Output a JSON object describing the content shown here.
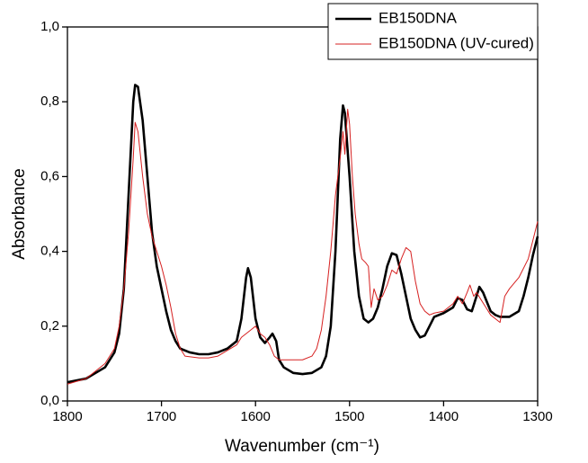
{
  "chart_data": {
    "type": "line",
    "xlabel": "Wavenumber (cm⁻¹)",
    "ylabel": "Absorbance",
    "xlim": [
      1800,
      1300
    ],
    "xticks": [
      1800,
      1700,
      1600,
      1500,
      1400,
      1300
    ],
    "ylim": [
      0,
      1.0
    ],
    "yticks": [
      {
        "value": 0,
        "label": "0,0"
      },
      {
        "value": 0.2,
        "label": "0,2"
      },
      {
        "value": 0.4,
        "label": "0,4"
      },
      {
        "value": 0.6,
        "label": "0,6"
      },
      {
        "value": 0.8,
        "label": "0,8"
      },
      {
        "value": 1.0,
        "label": "1,0"
      }
    ],
    "legend": "upper right",
    "series": [
      {
        "name": "EB150DNA",
        "color": "#000000",
        "x": [
          1800,
          1780,
          1760,
          1750,
          1745,
          1740,
          1735,
          1730,
          1728,
          1725,
          1720,
          1715,
          1710,
          1705,
          1700,
          1695,
          1690,
          1685,
          1680,
          1670,
          1660,
          1650,
          1640,
          1630,
          1620,
          1615,
          1610,
          1608,
          1605,
          1600,
          1595,
          1590,
          1585,
          1582,
          1578,
          1575,
          1570,
          1560,
          1550,
          1540,
          1530,
          1525,
          1520,
          1515,
          1510,
          1507,
          1505,
          1500,
          1495,
          1490,
          1485,
          1480,
          1475,
          1470,
          1465,
          1460,
          1455,
          1450,
          1445,
          1440,
          1435,
          1430,
          1425,
          1420,
          1415,
          1410,
          1400,
          1390,
          1385,
          1380,
          1375,
          1370,
          1365,
          1362,
          1358,
          1350,
          1345,
          1340,
          1330,
          1320,
          1315,
          1310,
          1305,
          1300
        ],
        "values": [
          0.05,
          0.06,
          0.09,
          0.13,
          0.18,
          0.3,
          0.55,
          0.8,
          0.845,
          0.84,
          0.75,
          0.6,
          0.45,
          0.36,
          0.3,
          0.24,
          0.19,
          0.16,
          0.14,
          0.13,
          0.125,
          0.125,
          0.13,
          0.14,
          0.16,
          0.22,
          0.33,
          0.355,
          0.33,
          0.22,
          0.17,
          0.155,
          0.17,
          0.18,
          0.16,
          0.11,
          0.09,
          0.075,
          0.072,
          0.075,
          0.09,
          0.12,
          0.2,
          0.4,
          0.7,
          0.79,
          0.77,
          0.6,
          0.4,
          0.28,
          0.22,
          0.21,
          0.22,
          0.25,
          0.3,
          0.36,
          0.395,
          0.39,
          0.34,
          0.28,
          0.22,
          0.19,
          0.17,
          0.175,
          0.2,
          0.225,
          0.235,
          0.25,
          0.275,
          0.27,
          0.245,
          0.24,
          0.28,
          0.305,
          0.29,
          0.24,
          0.23,
          0.225,
          0.225,
          0.24,
          0.28,
          0.33,
          0.39,
          0.44
        ]
      },
      {
        "name": "EB150DNA (UV-cured)",
        "color": "#d62020",
        "x": [
          1800,
          1780,
          1760,
          1750,
          1745,
          1740,
          1735,
          1730,
          1728,
          1725,
          1720,
          1715,
          1710,
          1705,
          1700,
          1695,
          1690,
          1685,
          1680,
          1675,
          1660,
          1650,
          1640,
          1630,
          1620,
          1615,
          1610,
          1605,
          1600,
          1595,
          1590,
          1585,
          1580,
          1575,
          1560,
          1550,
          1540,
          1535,
          1530,
          1525,
          1520,
          1515,
          1510,
          1507,
          1505,
          1502,
          1500,
          1497,
          1494,
          1490,
          1487,
          1483,
          1480,
          1477,
          1474,
          1470,
          1465,
          1460,
          1455,
          1450,
          1445,
          1440,
          1435,
          1430,
          1425,
          1420,
          1415,
          1410,
          1400,
          1390,
          1385,
          1380,
          1375,
          1372,
          1368,
          1365,
          1360,
          1355,
          1350,
          1345,
          1340,
          1335,
          1330,
          1320,
          1310,
          1305,
          1300
        ],
        "values": [
          0.045,
          0.06,
          0.1,
          0.14,
          0.2,
          0.3,
          0.45,
          0.65,
          0.745,
          0.72,
          0.6,
          0.5,
          0.44,
          0.4,
          0.36,
          0.31,
          0.25,
          0.18,
          0.14,
          0.12,
          0.115,
          0.115,
          0.12,
          0.135,
          0.15,
          0.17,
          0.18,
          0.19,
          0.2,
          0.18,
          0.17,
          0.15,
          0.12,
          0.11,
          0.11,
          0.11,
          0.12,
          0.14,
          0.19,
          0.28,
          0.4,
          0.55,
          0.65,
          0.72,
          0.66,
          0.78,
          0.74,
          0.6,
          0.5,
          0.42,
          0.38,
          0.37,
          0.36,
          0.25,
          0.3,
          0.27,
          0.28,
          0.31,
          0.35,
          0.34,
          0.38,
          0.41,
          0.4,
          0.32,
          0.26,
          0.24,
          0.23,
          0.235,
          0.24,
          0.26,
          0.28,
          0.26,
          0.29,
          0.31,
          0.28,
          0.29,
          0.27,
          0.25,
          0.23,
          0.22,
          0.21,
          0.28,
          0.3,
          0.33,
          0.38,
          0.43,
          0.48
        ]
      }
    ]
  }
}
